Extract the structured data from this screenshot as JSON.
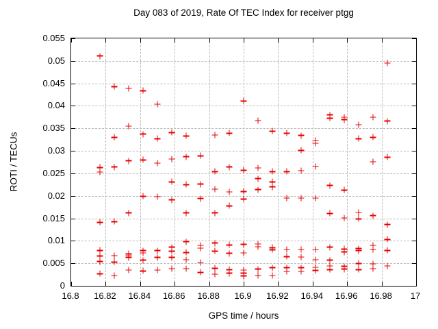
{
  "chart_data": {
    "type": "scatter",
    "title": "Day 083 of 2019, Rate Of TEC Index for receiver ptgg",
    "xlabel": "GPS time / hours",
    "ylabel": "ROTI / TECUs",
    "xlim": [
      16.8,
      17.0
    ],
    "ylim": [
      0,
      0.055
    ],
    "grid": true,
    "legend": "none",
    "marker": "plus",
    "marker_color": "#e60000",
    "grid_color": "#b9b9b9",
    "x_ticks": [
      16.8,
      16.82,
      16.84,
      16.86,
      16.88,
      16.9,
      16.92,
      16.94,
      16.96,
      16.98,
      17
    ],
    "x_tick_labels": [
      "16.8",
      "16.82",
      "16.84",
      "16.86",
      "16.88",
      "16.9",
      "16.92",
      "16.94",
      "16.96",
      "16.98",
      "17"
    ],
    "y_ticks": [
      0,
      0.005,
      0.01,
      0.015,
      0.02,
      0.025,
      0.03,
      0.035,
      0.04,
      0.045,
      0.05,
      0.055
    ],
    "y_tick_labels": [
      "0",
      "0.005",
      "0.01",
      "0.015",
      "0.02",
      "0.025",
      "0.03",
      "0.035",
      "0.04",
      "0.045",
      "0.05",
      "0.055"
    ],
    "points": [
      [
        16.8167,
        0.0511
      ],
      [
        16.8167,
        0.0263
      ],
      [
        16.8167,
        0.0253
      ],
      [
        16.8167,
        0.0141
      ],
      [
        16.8167,
        0.0079
      ],
      [
        16.8167,
        0.0066
      ],
      [
        16.8167,
        0.0054
      ],
      [
        16.8167,
        0.0027
      ],
      [
        16.825,
        0.0443
      ],
      [
        16.825,
        0.033
      ],
      [
        16.825,
        0.0264
      ],
      [
        16.825,
        0.0143
      ],
      [
        16.825,
        0.0067
      ],
      [
        16.825,
        0.0053
      ],
      [
        16.825,
        0.0023
      ],
      [
        16.8333,
        0.0439
      ],
      [
        16.8333,
        0.0355
      ],
      [
        16.8333,
        0.0278
      ],
      [
        16.8333,
        0.0162
      ],
      [
        16.8333,
        0.0071
      ],
      [
        16.8333,
        0.0067
      ],
      [
        16.8333,
        0.0063
      ],
      [
        16.8333,
        0.0035
      ],
      [
        16.8417,
        0.0434
      ],
      [
        16.8417,
        0.0337
      ],
      [
        16.8417,
        0.028
      ],
      [
        16.8417,
        0.0199
      ],
      [
        16.8417,
        0.0078
      ],
      [
        16.8417,
        0.0073
      ],
      [
        16.8417,
        0.0057
      ],
      [
        16.8417,
        0.0033
      ],
      [
        16.85,
        0.0404
      ],
      [
        16.85,
        0.0327
      ],
      [
        16.85,
        0.0273
      ],
      [
        16.85,
        0.0198
      ],
      [
        16.85,
        0.0078
      ],
      [
        16.85,
        0.0063
      ],
      [
        16.85,
        0.0035
      ],
      [
        16.8583,
        0.0341
      ],
      [
        16.8583,
        0.0282
      ],
      [
        16.8583,
        0.0231
      ],
      [
        16.8583,
        0.0191
      ],
      [
        16.8583,
        0.0086
      ],
      [
        16.8583,
        0.0077
      ],
      [
        16.8583,
        0.0063
      ],
      [
        16.8583,
        0.0038
      ],
      [
        16.8667,
        0.0333
      ],
      [
        16.8667,
        0.0287
      ],
      [
        16.8667,
        0.0225
      ],
      [
        16.8667,
        0.0162
      ],
      [
        16.8667,
        0.0098
      ],
      [
        16.8667,
        0.0074
      ],
      [
        16.8667,
        0.0058
      ],
      [
        16.8667,
        0.0038
      ],
      [
        16.875,
        0.0289
      ],
      [
        16.875,
        0.0226
      ],
      [
        16.875,
        0.0194
      ],
      [
        16.875,
        0.009
      ],
      [
        16.875,
        0.0084
      ],
      [
        16.875,
        0.0052
      ],
      [
        16.875,
        0.003
      ],
      [
        16.8833,
        0.0335
      ],
      [
        16.8833,
        0.0254
      ],
      [
        16.8833,
        0.0215
      ],
      [
        16.8833,
        0.0162
      ],
      [
        16.8833,
        0.0095
      ],
      [
        16.8833,
        0.0077
      ],
      [
        16.8833,
        0.0039
      ],
      [
        16.8833,
        0.0026
      ],
      [
        16.8917,
        0.0339
      ],
      [
        16.8917,
        0.0264
      ],
      [
        16.8917,
        0.0209
      ],
      [
        16.8917,
        0.0178
      ],
      [
        16.8917,
        0.0091
      ],
      [
        16.8917,
        0.0072
      ],
      [
        16.8917,
        0.0036
      ],
      [
        16.8917,
        0.0028
      ],
      [
        16.9,
        0.0411
      ],
      [
        16.9,
        0.0257
      ],
      [
        16.9,
        0.021
      ],
      [
        16.9,
        0.0193
      ],
      [
        16.9,
        0.0092
      ],
      [
        16.9,
        0.0073
      ],
      [
        16.9,
        0.0035
      ],
      [
        16.9,
        0.0028
      ],
      [
        16.9,
        0.0022
      ],
      [
        16.9083,
        0.0367
      ],
      [
        16.9083,
        0.0262
      ],
      [
        16.9083,
        0.0238
      ],
      [
        16.9083,
        0.0214
      ],
      [
        16.9083,
        0.0093
      ],
      [
        16.9083,
        0.0087
      ],
      [
        16.9083,
        0.0037
      ],
      [
        16.9083,
        0.0023
      ],
      [
        16.9167,
        0.0344
      ],
      [
        16.9167,
        0.0254
      ],
      [
        16.9167,
        0.0231
      ],
      [
        16.9167,
        0.022
      ],
      [
        16.9167,
        0.0085
      ],
      [
        16.9167,
        0.008
      ],
      [
        16.9167,
        0.004
      ],
      [
        16.9167,
        0.0023
      ],
      [
        16.925,
        0.0339
      ],
      [
        16.925,
        0.0254
      ],
      [
        16.925,
        0.0195
      ],
      [
        16.925,
        0.0081
      ],
      [
        16.925,
        0.0065
      ],
      [
        16.925,
        0.004
      ],
      [
        16.925,
        0.0032
      ],
      [
        16.9333,
        0.0334
      ],
      [
        16.9333,
        0.0301
      ],
      [
        16.9333,
        0.0256
      ],
      [
        16.9333,
        0.0195
      ],
      [
        16.9333,
        0.0081
      ],
      [
        16.9333,
        0.0064
      ],
      [
        16.9333,
        0.004
      ],
      [
        16.9333,
        0.0032
      ],
      [
        16.9417,
        0.0323
      ],
      [
        16.9417,
        0.0317
      ],
      [
        16.9417,
        0.0265
      ],
      [
        16.9417,
        0.0195
      ],
      [
        16.9417,
        0.0081
      ],
      [
        16.9417,
        0.0058
      ],
      [
        16.9417,
        0.0041
      ],
      [
        16.9417,
        0.0034
      ],
      [
        16.95,
        0.038
      ],
      [
        16.95,
        0.0373
      ],
      [
        16.95,
        0.0223
      ],
      [
        16.95,
        0.0161
      ],
      [
        16.95,
        0.0086
      ],
      [
        16.95,
        0.0057
      ],
      [
        16.95,
        0.0044
      ],
      [
        16.95,
        0.0036
      ],
      [
        16.9583,
        0.0375
      ],
      [
        16.9583,
        0.0369
      ],
      [
        16.9583,
        0.0213
      ],
      [
        16.9583,
        0.0151
      ],
      [
        16.9583,
        0.0082
      ],
      [
        16.9583,
        0.0075
      ],
      [
        16.9583,
        0.0043
      ],
      [
        16.9583,
        0.0037
      ],
      [
        16.9667,
        0.0358
      ],
      [
        16.9667,
        0.0327
      ],
      [
        16.9667,
        0.0163
      ],
      [
        16.9667,
        0.0149
      ],
      [
        16.9667,
        0.0083
      ],
      [
        16.9667,
        0.0078
      ],
      [
        16.9667,
        0.005
      ],
      [
        16.9667,
        0.0036
      ],
      [
        16.975,
        0.0375
      ],
      [
        16.975,
        0.033
      ],
      [
        16.975,
        0.0276
      ],
      [
        16.975,
        0.0156
      ],
      [
        16.975,
        0.009
      ],
      [
        16.975,
        0.0081
      ],
      [
        16.975,
        0.0049
      ],
      [
        16.975,
        0.0038
      ],
      [
        16.9833,
        0.0495
      ],
      [
        16.9833,
        0.0366
      ],
      [
        16.9833,
        0.0286
      ],
      [
        16.9833,
        0.0136
      ],
      [
        16.9833,
        0.0103
      ],
      [
        16.9833,
        0.0079
      ],
      [
        16.9833,
        0.0044
      ]
    ]
  }
}
